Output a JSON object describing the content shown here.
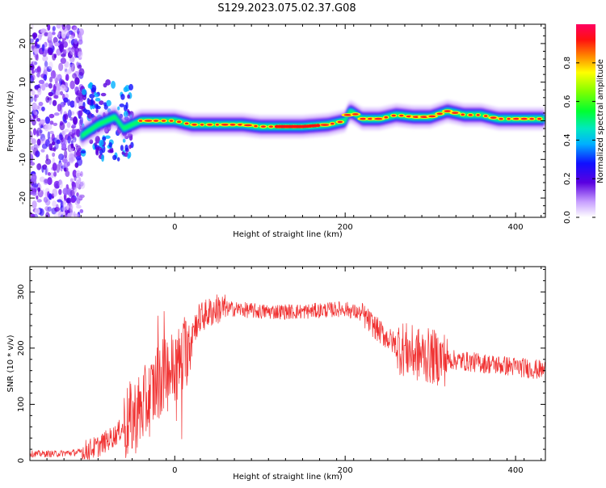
{
  "title": "S129.2023.075.02.37.G08",
  "chart_data": [
    {
      "type": "heatmap",
      "xlabel": "Height of straight line (km)",
      "ylabel": "Frequency (Hz)",
      "xlim": [
        -170,
        435
      ],
      "ylim": [
        -25,
        25
      ],
      "x_ticks": [
        0,
        200,
        400
      ],
      "y_ticks": [
        -20,
        -10,
        0,
        10,
        20
      ],
      "colorbar": {
        "label": "Normalized spectral amplitude",
        "range": [
          0,
          1
        ],
        "ticks": [
          0.0,
          0.2,
          0.4,
          0.6,
          0.8
        ]
      },
      "ridge": {
        "x": [
          -110,
          -90,
          -70,
          -60,
          -50,
          -40,
          -20,
          0,
          20,
          50,
          80,
          100,
          120,
          150,
          180,
          200,
          205,
          210,
          220,
          240,
          260,
          280,
          300,
          320,
          340,
          360,
          380,
          400,
          420,
          435
        ],
        "y": [
          -4,
          -1,
          1,
          -2,
          -1,
          0,
          0,
          0,
          -1,
          -1,
          -1,
          -1.5,
          -1.5,
          -1.5,
          -1,
          0,
          2.5,
          2,
          0.5,
          0.5,
          1.5,
          1,
          1,
          2.5,
          1.5,
          1.5,
          0.5,
          0.5,
          0.5,
          0.5
        ]
      }
    },
    {
      "type": "line",
      "xlabel": "Height of straight line (km)",
      "ylabel": "SNR (10 * v/v)",
      "xlim": [
        -170,
        435
      ],
      "ylim": [
        0,
        345
      ],
      "x_ticks": [
        0,
        200,
        400
      ],
      "y_ticks": [
        0,
        100,
        200,
        300
      ],
      "color": "#f03030",
      "series": [
        {
          "x": [
            -170,
            -140,
            -110,
            -90,
            -70,
            -50,
            -40,
            -30,
            -20,
            -10,
            0,
            10,
            20,
            30,
            50,
            70,
            100,
            150,
            200,
            220,
            240,
            260,
            280,
            300,
            320,
            350,
            380,
            410,
            435
          ],
          "y": [
            12,
            12,
            15,
            25,
            45,
            75,
            90,
            110,
            140,
            155,
            165,
            180,
            230,
            255,
            270,
            270,
            265,
            265,
            270,
            260,
            230,
            205,
            190,
            185,
            180,
            175,
            170,
            165,
            160
          ]
        }
      ]
    }
  ]
}
